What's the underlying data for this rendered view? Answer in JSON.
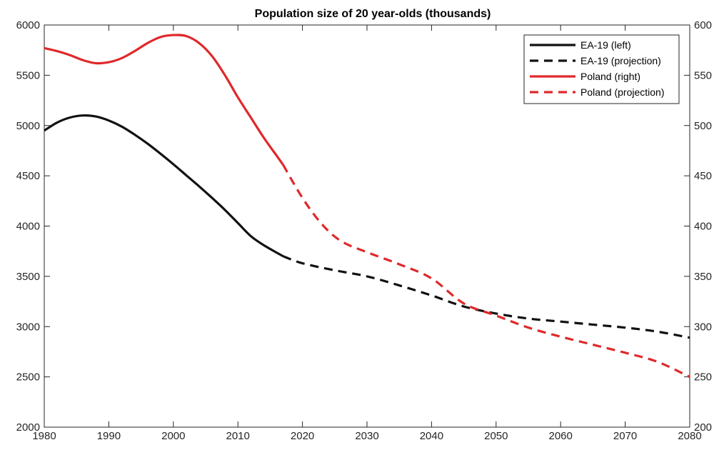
{
  "chart_data": {
    "type": "line",
    "title": "Population size of 20 year-olds (thousands)",
    "xlabel": "",
    "ylabel_left": "",
    "ylabel_right": "",
    "xlim": [
      1980,
      2080
    ],
    "ylim_left": [
      2000,
      6000
    ],
    "ylim_right": [
      200,
      600
    ],
    "x_ticks": [
      "1980",
      "1990",
      "2000",
      "2010",
      "2020",
      "2030",
      "2040",
      "2050",
      "2060",
      "2070",
      "2080"
    ],
    "y_left_ticks": [
      "2000",
      "2500",
      "3000",
      "3500",
      "4000",
      "4500",
      "5000",
      "5500",
      "6000"
    ],
    "y_right_ticks": [
      "200",
      "250",
      "300",
      "350",
      "400",
      "450",
      "500",
      "550",
      "600"
    ],
    "grid": false,
    "legend_position": "top-right",
    "colors": {
      "ea19": "#111111",
      "poland": "#e0282a"
    },
    "series": [
      {
        "name": "EA-19 (left)",
        "axis": "left",
        "style": "solid",
        "color": "#111111",
        "x": [
          1980,
          1982,
          1984,
          1986,
          1988,
          1990,
          1992,
          1994,
          1996,
          1998,
          2000,
          2002,
          2004,
          2006,
          2008,
          2010,
          2012,
          2014,
          2017
        ],
        "y": [
          4950,
          5030,
          5080,
          5100,
          5090,
          5050,
          4990,
          4910,
          4820,
          4720,
          4615,
          4505,
          4395,
          4280,
          4160,
          4030,
          3900,
          3810,
          3700
        ]
      },
      {
        "name": "EA-19 (projection)",
        "axis": "left",
        "style": "dashed",
        "color": "#111111",
        "x": [
          2017,
          2020,
          2025,
          2030,
          2035,
          2040,
          2045,
          2050,
          2055,
          2060,
          2065,
          2070,
          2075,
          2080
        ],
        "y": [
          3700,
          3630,
          3560,
          3500,
          3410,
          3310,
          3200,
          3130,
          3080,
          3050,
          3020,
          2990,
          2950,
          2890
        ]
      },
      {
        "name": "Poland (right)",
        "axis": "right",
        "style": "solid",
        "color": "#e0282a",
        "x": [
          1980,
          1982,
          1984,
          1986,
          1988,
          1990,
          1992,
          1994,
          1996,
          1998,
          2000,
          2002,
          2004,
          2006,
          2008,
          2010,
          2012,
          2014,
          2016,
          2017
        ],
        "y": [
          577,
          574,
          570,
          565,
          562,
          563,
          567,
          574,
          582,
          588,
          590,
          589,
          582,
          569,
          550,
          528,
          508,
          488,
          470,
          461
        ]
      },
      {
        "name": "Poland (projection)",
        "axis": "right",
        "style": "dashed",
        "color": "#e0282a",
        "x": [
          2017,
          2020,
          2023,
          2026,
          2030,
          2035,
          2040,
          2045,
          2050,
          2055,
          2060,
          2065,
          2070,
          2075,
          2080
        ],
        "y": [
          461,
          428,
          402,
          385,
          374,
          362,
          348,
          323,
          311,
          299,
          290,
          282,
          274,
          265,
          250
        ]
      }
    ]
  }
}
